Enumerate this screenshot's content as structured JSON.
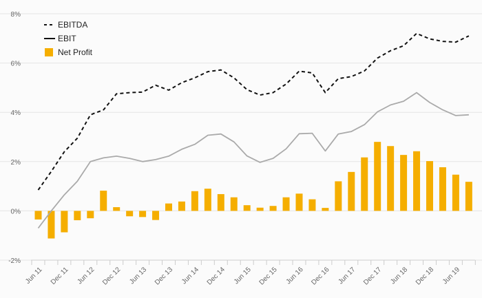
{
  "chart_data": {
    "type": "bar",
    "y_ticks": [
      "8%",
      "6%",
      "4%",
      "2%",
      "0%",
      "-2%"
    ],
    "ylim": [
      -2,
      8
    ],
    "x_tick_labels": [
      "Jun 11",
      "Dec 11",
      "Jun 12",
      "Dec 12",
      "Jun 13",
      "Dec 13",
      "Jun 14",
      "Dec 14",
      "Jun 15",
      "Dec 15",
      "Jun 16",
      "Dec 16",
      "Jun 17",
      "Dec 17",
      "Jun 18",
      "Dec 18",
      "Jun 19"
    ],
    "legend_position": "top-left",
    "grid": true,
    "series": [
      {
        "name": "EBITDA",
        "kind": "line",
        "style": "dashed",
        "color": "#111111",
        "values": [
          0.85,
          1.6,
          2.4,
          2.95,
          3.9,
          4.1,
          4.75,
          4.8,
          4.82,
          5.1,
          4.9,
          5.2,
          5.4,
          5.65,
          5.72,
          5.4,
          4.92,
          4.7,
          4.8,
          5.15,
          5.67,
          5.6,
          4.8,
          5.37,
          5.45,
          5.68,
          6.2,
          6.5,
          6.7,
          7.2,
          6.98,
          6.88,
          6.85,
          7.1
        ]
      },
      {
        "name": "EBIT",
        "kind": "line",
        "style": "solid",
        "color": "#aaaaaa",
        "values": [
          -0.7,
          0.0,
          0.65,
          1.2,
          2.0,
          2.15,
          2.22,
          2.13,
          2.0,
          2.08,
          2.22,
          2.5,
          2.7,
          3.07,
          3.12,
          2.8,
          2.23,
          1.97,
          2.13,
          2.52,
          3.13,
          3.15,
          2.43,
          3.12,
          3.22,
          3.5,
          4.02,
          4.3,
          4.45,
          4.8,
          4.4,
          4.1,
          3.87,
          3.9
        ]
      },
      {
        "name": "Net Profit",
        "kind": "bar",
        "color": "#f5ae00",
        "values": [
          -0.35,
          -1.12,
          -0.87,
          -0.38,
          -0.3,
          0.82,
          0.15,
          -0.22,
          -0.25,
          -0.37,
          0.3,
          0.38,
          0.8,
          0.9,
          0.68,
          0.55,
          0.23,
          0.13,
          0.2,
          0.55,
          0.7,
          0.47,
          0.12,
          1.2,
          1.58,
          2.17,
          2.8,
          2.63,
          2.27,
          2.42,
          2.02,
          1.77,
          1.47,
          1.18
        ]
      }
    ]
  }
}
